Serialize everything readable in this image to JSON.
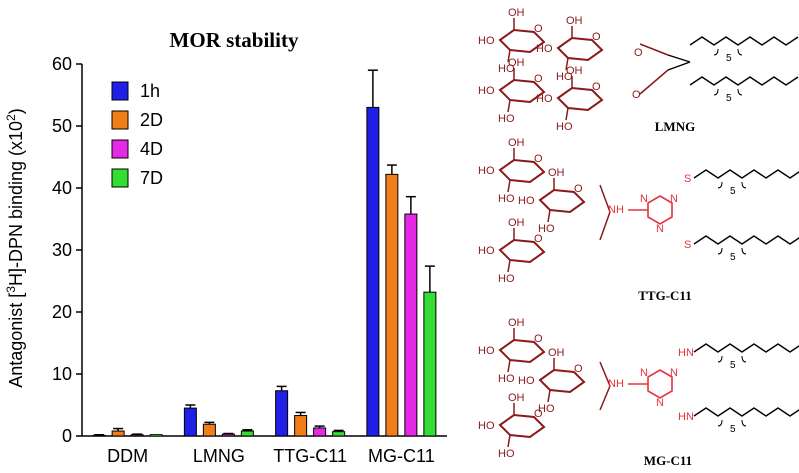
{
  "chart_data": {
    "type": "bar",
    "title": "MOR stability",
    "ylabel_parts": {
      "pre": "Antagonist [",
      "sup1": "3",
      "mid": "H]-DPN binding (x10",
      "sup2": "2",
      "post": ")"
    },
    "categories": [
      "DDM",
      "LMNG",
      "TTG-C11",
      "MG-C11"
    ],
    "ylim": [
      0,
      60
    ],
    "yticks": [
      0,
      10,
      20,
      30,
      40,
      50,
      60
    ],
    "legend_placement": "top-left",
    "series": [
      {
        "name": "1h",
        "color": "#1f1fe6",
        "values": [
          0.1,
          4.5,
          7.3,
          53.0
        ],
        "errors": [
          0.1,
          0.5,
          0.7,
          6.0
        ]
      },
      {
        "name": "2D",
        "color": "#f07f1a",
        "values": [
          0.8,
          1.9,
          3.3,
          42.2
        ],
        "errors": [
          0.4,
          0.3,
          0.5,
          1.5
        ]
      },
      {
        "name": "4D",
        "color": "#e52ae5",
        "values": [
          0.2,
          0.3,
          1.3,
          35.8
        ],
        "errors": [
          0.1,
          0.1,
          0.3,
          2.8
        ]
      },
      {
        "name": "7D",
        "color": "#33dd33",
        "values": [
          0.0,
          0.8,
          0.7,
          23.2
        ],
        "errors": [
          0.0,
          0.2,
          0.2,
          4.2
        ]
      }
    ]
  },
  "structures": {
    "names": [
      "LMNG",
      "TTG-C11",
      "MG-C11"
    ],
    "sugar_color": "#8b1a1a",
    "linker_color": "#e8323c",
    "labels": {
      "oh": "OH",
      "ho": "HO",
      "o": "O",
      "n": "N",
      "nh": "NH",
      "hn": "HN",
      "s": "S",
      "sub5": "5"
    }
  }
}
